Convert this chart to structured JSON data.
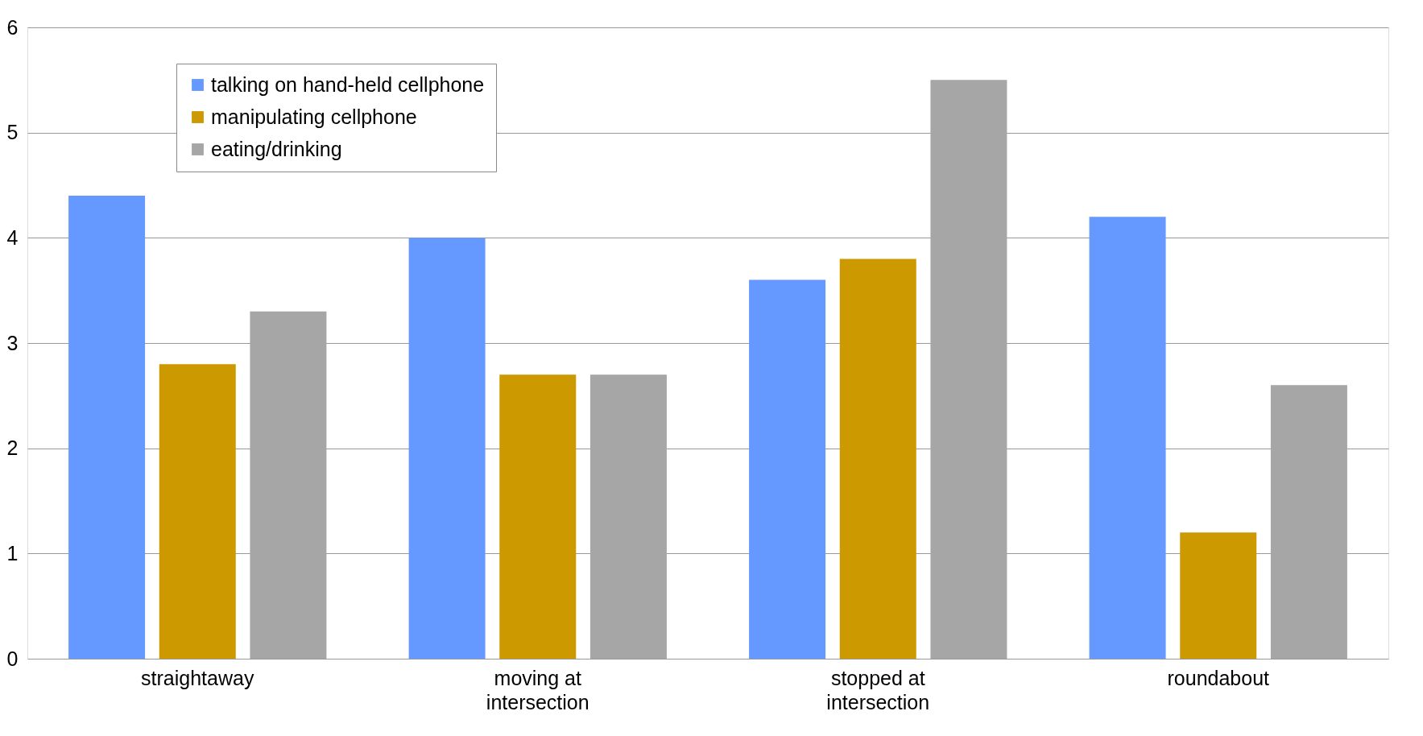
{
  "chart_data": {
    "type": "bar",
    "categories": [
      "straightaway",
      "moving at\nintersection",
      "stopped at\nintersection",
      "roundabout"
    ],
    "series": [
      {
        "name": "talking on hand-held cellphone",
        "color": "#6699ff",
        "values": [
          4.4,
          4.0,
          3.6,
          4.2
        ]
      },
      {
        "name": "manipulating cellphone",
        "color": "#cc9900",
        "values": [
          2.8,
          2.7,
          3.8,
          1.2
        ]
      },
      {
        "name": "eating/drinking",
        "color": "#a6a6a6",
        "values": [
          3.3,
          2.7,
          5.5,
          2.6
        ]
      }
    ],
    "ylim": [
      0,
      6
    ],
    "yticks": [
      0,
      1,
      2,
      3,
      4,
      5,
      6
    ],
    "grid": "y",
    "legend": "top left"
  }
}
